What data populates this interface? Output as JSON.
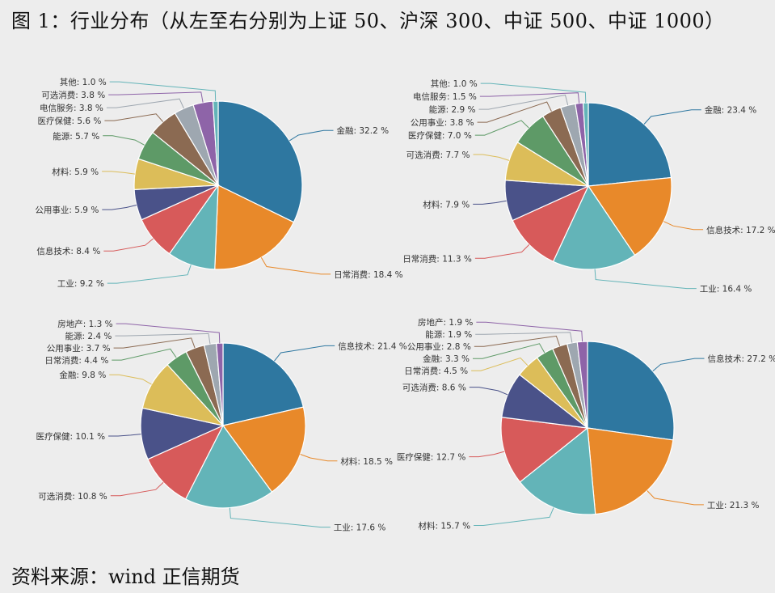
{
  "title": "图 1：行业分布（从左至右分别为上证 50、沪深 300、中证 500、中证 1000）",
  "source": "资料来源：wind 正信期货",
  "colors": {
    "blue": "#2e77a0",
    "orange": "#e8892a",
    "teal": "#63b4b8",
    "red": "#d75a5a",
    "navy": "#4a5289",
    "yellow": "#dcbd59",
    "green": "#5e9a67",
    "brown": "#8b6a52",
    "gray": "#9ea7b0",
    "purple": "#8e64a8"
  },
  "chart_data": [
    {
      "type": "pie",
      "name": "",
      "categories": [
        "金融",
        "日常消费",
        "工业",
        "信息技术",
        "公用事业",
        "材料",
        "能源",
        "医疗保健",
        "电信服务",
        "可选消费",
        "其他"
      ],
      "values": [
        32.2,
        18.4,
        9.2,
        8.4,
        5.9,
        5.9,
        5.7,
        5.6,
        3.8,
        3.8,
        1.0
      ],
      "labels": [
        "金融: 32.2 %",
        "日常消费: 18.4 %",
        "工业: 9.2 %",
        "信息技术: 8.4 %",
        "公用事业: 5.9 %",
        "材料: 5.9 %",
        "能源: 5.7 %",
        "医疗保健: 5.6 %",
        "电信服务: 3.8 %",
        "可选消费: 3.8 %",
        "其他: 1.0 %"
      ],
      "colors": [
        "blue",
        "orange",
        "teal",
        "red",
        "navy",
        "yellow",
        "green",
        "brown",
        "gray",
        "purple",
        "teal"
      ]
    },
    {
      "type": "pie",
      "name": "",
      "categories": [
        "金融",
        "信息技术",
        "工业",
        "日常消费",
        "材料",
        "可选消费",
        "医疗保健",
        "公用事业",
        "能源",
        "电信服务",
        "其他"
      ],
      "values": [
        23.4,
        17.2,
        16.4,
        11.3,
        7.9,
        7.7,
        7.0,
        3.8,
        2.9,
        1.5,
        1.0
      ],
      "labels": [
        "金融: 23.4 %",
        "信息技术: 17.2 %",
        "工业: 16.4 %",
        "日常消费: 11.3 %",
        "材料: 7.9 %",
        "可选消费: 7.7 %",
        "医疗保健: 7.0 %",
        "公用事业: 3.8 %",
        "能源: 2.9 %",
        "电信服务: 1.5 %",
        "其他: 1.0 %"
      ],
      "colors": [
        "blue",
        "orange",
        "teal",
        "red",
        "navy",
        "yellow",
        "green",
        "brown",
        "gray",
        "purple",
        "teal"
      ]
    },
    {
      "type": "pie",
      "name": "",
      "categories": [
        "信息技术",
        "材料",
        "工业",
        "可选消费",
        "医疗保健",
        "金融",
        "日常消费",
        "公用事业",
        "能源",
        "房地产"
      ],
      "values": [
        21.4,
        18.5,
        17.6,
        10.8,
        10.1,
        9.8,
        4.4,
        3.7,
        2.4,
        1.3
      ],
      "labels": [
        "信息技术: 21.4 %",
        "材料: 18.5 %",
        "工业: 17.6 %",
        "可选消费: 10.8 %",
        "医疗保健: 10.1 %",
        "金融: 9.8 %",
        "日常消费: 4.4 %",
        "公用事业: 3.7 %",
        "能源: 2.4 %",
        "房地产: 1.3 %"
      ],
      "colors": [
        "blue",
        "orange",
        "teal",
        "red",
        "navy",
        "yellow",
        "green",
        "brown",
        "gray",
        "purple"
      ]
    },
    {
      "type": "pie",
      "name": "",
      "categories": [
        "信息技术",
        "工业",
        "材料",
        "医疗保健",
        "可选消费",
        "日常消费",
        "金融",
        "公用事业",
        "能源",
        "房地产"
      ],
      "values": [
        27.2,
        21.3,
        15.7,
        12.7,
        8.6,
        4.5,
        3.3,
        2.8,
        1.9,
        1.9
      ],
      "labels": [
        "信息技术: 27.2 %",
        "工业: 21.3 %",
        "材料: 15.7 %",
        "医疗保健: 12.7 %",
        "可选消费: 8.6 %",
        "日常消费: 4.5 %",
        "金融: 3.3 %",
        "公用事业: 2.8 %",
        "能源: 1.9 %",
        "房地产: 1.9 %"
      ],
      "colors": [
        "blue",
        "orange",
        "teal",
        "red",
        "navy",
        "yellow",
        "green",
        "brown",
        "gray",
        "purple"
      ]
    }
  ]
}
